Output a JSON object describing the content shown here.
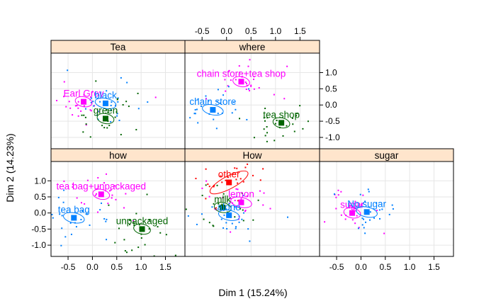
{
  "chart_data": {
    "type": "scatter",
    "title": "",
    "xlabel": "Dim 1 (15.24%)",
    "ylabel": "Dim 2 (14.23%)",
    "xlim": [
      -0.85,
      1.9
    ],
    "ylim": [
      -1.35,
      1.6
    ],
    "x_ticks": [
      "-0.5",
      "0.0",
      "0.5",
      "1.0",
      "1.5"
    ],
    "y_ticks": [
      "1.0",
      "0.5",
      "0.0",
      "-0.5",
      "-1.0"
    ],
    "grid": true,
    "colors": {
      "strip": "#FFE5CC",
      "grid": "#E6E6E6",
      "magenta": "#FF00FF",
      "blue": "#0080FF",
      "darkgreen": "#006400",
      "red": "#FF0000"
    },
    "panels": [
      {
        "title": "Tea",
        "categories": [
          {
            "label": "Earl Grey",
            "x": -0.18,
            "y": 0.1,
            "color": "#FF00FF"
          },
          {
            "label": "black",
            "x": 0.27,
            "y": 0.05,
            "color": "#0080FF"
          },
          {
            "label": "green",
            "x": 0.27,
            "y": -0.42,
            "color": "#006400"
          }
        ]
      },
      {
        "title": "where",
        "categories": [
          {
            "label": "chain store+tea shop",
            "x": 0.3,
            "y": 0.72,
            "color": "#FF00FF"
          },
          {
            "label": "chain store",
            "x": -0.28,
            "y": -0.15,
            "color": "#0080FF"
          },
          {
            "label": "tea shop",
            "x": 1.12,
            "y": -0.55,
            "color": "#006400"
          }
        ]
      },
      {
        "title": "how",
        "categories": [
          {
            "label": "tea bag+unpackaged",
            "x": 0.18,
            "y": 0.58,
            "color": "#FF00FF"
          },
          {
            "label": "tea bag",
            "x": -0.38,
            "y": -0.15,
            "color": "#0080FF"
          },
          {
            "label": "unpackaged",
            "x": 1.02,
            "y": -0.5,
            "color": "#006400"
          }
        ]
      },
      {
        "title": "How",
        "categories": [
          {
            "label": "other",
            "x": 0.05,
            "y": 0.95,
            "color": "#FF0000"
          },
          {
            "label": "lemon",
            "x": 0.3,
            "y": 0.33,
            "color": "#FF00FF"
          },
          {
            "label": "milk",
            "x": -0.08,
            "y": 0.17,
            "color": "#006400"
          },
          {
            "label": "alone",
            "x": 0.05,
            "y": -0.07,
            "color": "#0080FF"
          }
        ]
      },
      {
        "title": "sugar",
        "categories": [
          {
            "label": "sugar",
            "x": -0.18,
            "y": 0.0,
            "color": "#FF00FF"
          },
          {
            "label": "No.sugar",
            "x": 0.12,
            "y": 0.03,
            "color": "#0080FF"
          }
        ]
      }
    ]
  }
}
